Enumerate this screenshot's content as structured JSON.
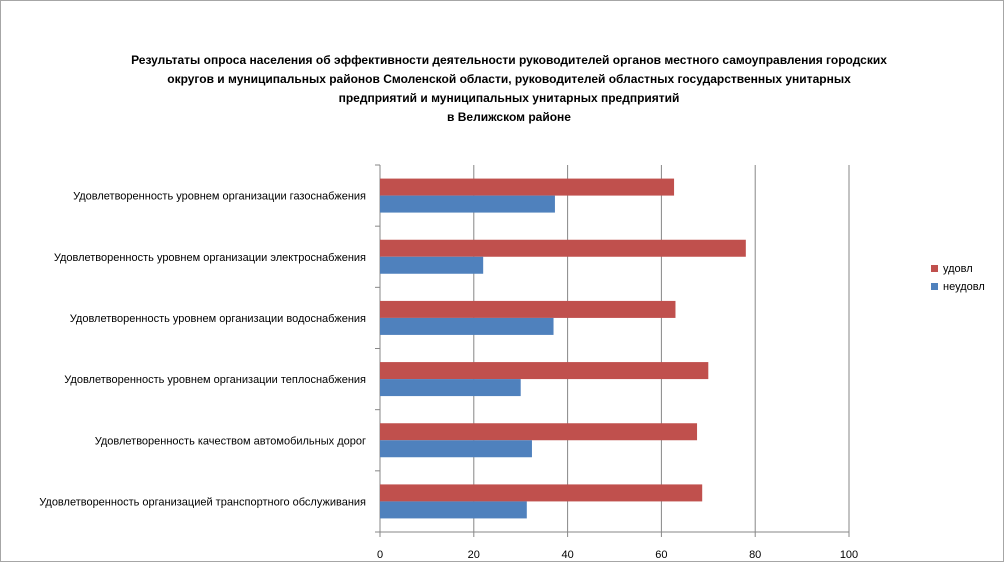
{
  "chart_data": {
    "type": "bar",
    "orientation": "horizontal",
    "title": [
      "Результаты опроса населения об эффективности деятельности руководителей органов местного самоуправления городских",
      "округов и муниципальных районов Смоленской области, руководителей областных государственных унитарных",
      "предприятий и муниципальных унитарных предприятий",
      "в Велижском районе"
    ],
    "categories": [
      "Удовлетворенность уровнем организации газоснабжения",
      "Удовлетворенность уровнем организации электроснабжения",
      "Удовлетворенность уровнем организации водоснабжения",
      "Удовлетворенность уровнем организации теплоснабжения",
      "Удовлетворенность качеством автомобильных дорог",
      "Удовлетворенность организацией транспортного обслуживания"
    ],
    "series": [
      {
        "name": "удовл",
        "color": "#c0504d",
        "values": [
          62.7,
          78.0,
          63.0,
          70.0,
          67.6,
          68.7
        ]
      },
      {
        "name": "неудовл",
        "color": "#4f81bd",
        "values": [
          37.3,
          22.0,
          37.0,
          30.0,
          32.4,
          31.3
        ]
      }
    ],
    "xlim": [
      0,
      100
    ],
    "xticks": [
      0,
      20,
      40,
      60,
      80,
      100
    ],
    "grid": true,
    "legend": "right"
  }
}
